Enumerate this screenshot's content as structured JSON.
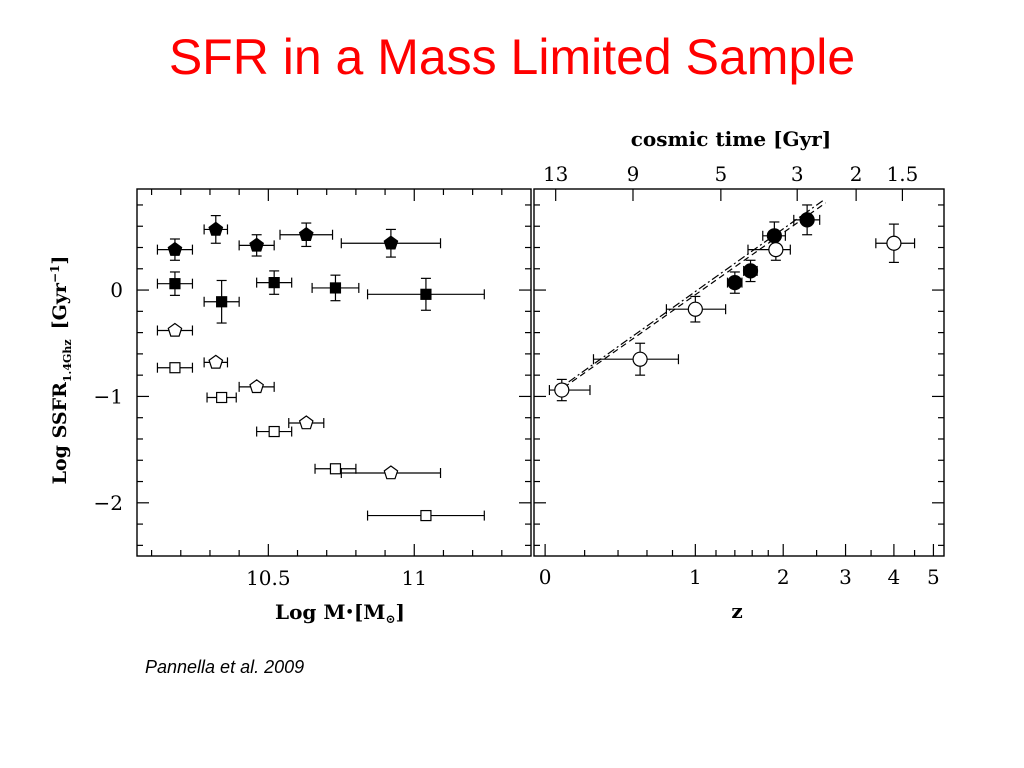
{
  "slide": {
    "title": "SFR in a Mass Limited Sample",
    "citation": "Pannella et al. 2009"
  },
  "chart_data": [
    {
      "type": "scatter",
      "panel": "left",
      "xlabel": "Log M*[M☉]",
      "ylabel": "Log SSFR1.4Ghz [Gyr−1]",
      "xlim": [
        10.05,
        11.4
      ],
      "ylim": [
        -2.5,
        0.95
      ],
      "xticks": [
        10.5,
        11
      ],
      "xtick_labels": [
        "10.5",
        "11"
      ],
      "yticks": [
        0,
        -1,
        -2
      ],
      "ytick_labels": [
        "0",
        "−1",
        "−2"
      ],
      "series": [
        {
          "marker": "filled-pentagon",
          "points": [
            {
              "x": 10.18,
              "y": 0.38,
              "xerr": 0.06,
              "yerr": 0.1
            },
            {
              "x": 10.32,
              "y": 0.57,
              "xerr": 0.04,
              "yerr": 0.13
            },
            {
              "x": 10.46,
              "y": 0.42,
              "xerr": 0.06,
              "yerr": 0.1
            },
            {
              "x": 10.63,
              "y": 0.52,
              "xerr": 0.09,
              "yerr": 0.11
            },
            {
              "x": 10.92,
              "y": 0.44,
              "xerr": 0.17,
              "yerr": 0.13
            }
          ]
        },
        {
          "marker": "filled-square",
          "points": [
            {
              "x": 10.18,
              "y": 0.06,
              "xerr": 0.06,
              "yerr": 0.11
            },
            {
              "x": 10.34,
              "y": -0.11,
              "xerr": 0.06,
              "yerr": 0.2
            },
            {
              "x": 10.52,
              "y": 0.07,
              "xerr": 0.06,
              "yerr": 0.11
            },
            {
              "x": 10.73,
              "y": 0.02,
              "xerr": 0.08,
              "yerr": 0.12
            },
            {
              "x": 11.04,
              "y": -0.04,
              "xerr": 0.2,
              "yerr": 0.15
            }
          ]
        },
        {
          "marker": "open-pentagon",
          "points": [
            {
              "x": 10.18,
              "y": -0.38,
              "xerr": 0.06,
              "yerr": 0.0
            },
            {
              "x": 10.32,
              "y": -0.68,
              "xerr": 0.04,
              "yerr": 0.0
            },
            {
              "x": 10.46,
              "y": -0.91,
              "xerr": 0.06,
              "yerr": 0.0
            },
            {
              "x": 10.63,
              "y": -1.25,
              "xerr": 0.06,
              "yerr": 0.0
            },
            {
              "x": 10.92,
              "y": -1.72,
              "xerr": 0.17,
              "yerr": 0.0
            }
          ]
        },
        {
          "marker": "open-square",
          "points": [
            {
              "x": 10.18,
              "y": -0.73,
              "xerr": 0.06,
              "yerr": 0.0
            },
            {
              "x": 10.34,
              "y": -1.01,
              "xerr": 0.05,
              "yerr": 0.0
            },
            {
              "x": 10.52,
              "y": -1.33,
              "xerr": 0.06,
              "yerr": 0.0
            },
            {
              "x": 10.73,
              "y": -1.68,
              "xerr": 0.07,
              "yerr": 0.0
            },
            {
              "x": 11.04,
              "y": -2.12,
              "xerr": 0.2,
              "yerr": 0.0
            }
          ]
        }
      ]
    },
    {
      "type": "scatter",
      "panel": "right",
      "xlabel": "z",
      "xscale": "log(1+z)",
      "xlim": [
        -0.05,
        5.3
      ],
      "ylim": [
        -2.5,
        0.95
      ],
      "xticks": [
        0,
        1,
        2,
        3,
        4,
        5
      ],
      "xtick_labels": [
        "0",
        "1",
        "2",
        "3",
        "4",
        "5"
      ],
      "top_axis": {
        "label": "cosmic time [Gyr]",
        "tick_labels": [
          "13",
          "9",
          "5",
          "3",
          "2",
          "1.5"
        ],
        "tick_z": [
          0.05,
          0.5,
          1.25,
          2.2,
          3.2,
          4.2
        ]
      },
      "series": [
        {
          "marker": "filled-circle",
          "points": [
            {
              "z": 1.4,
              "y": 0.07,
              "zerr": [
                0.08,
                0.08
              ],
              "yerr": 0.1
            },
            {
              "z": 1.58,
              "y": 0.18,
              "zerr": [
                0.08,
                0.08
              ],
              "yerr": 0.1
            },
            {
              "z": 1.88,
              "y": 0.51,
              "zerr": [
                0.15,
                0.15
              ],
              "yerr": 0.13
            },
            {
              "z": 2.35,
              "y": 0.66,
              "zerr": [
                0.2,
                0.2
              ],
              "yerr": 0.14
            }
          ]
        },
        {
          "marker": "open-circle",
          "points": [
            {
              "z": 0.08,
              "y": -0.94,
              "zerr": [
                0.06,
                0.15
              ],
              "yerr": 0.1
            },
            {
              "z": 0.55,
              "y": -0.65,
              "zerr": [
                0.3,
                0.3
              ],
              "yerr": 0.15
            },
            {
              "z": 1.0,
              "y": -0.18,
              "zerr": [
                0.25,
                0.3
              ],
              "yerr": 0.12
            },
            {
              "z": 1.9,
              "y": 0.38,
              "zerr": [
                0.35,
                0.2
              ],
              "yerr": 0.1
            },
            {
              "z": 4.0,
              "y": 0.44,
              "zerr": [
                0.4,
                0.5
              ],
              "yerr": 0.18
            }
          ]
        }
      ],
      "fit_lines": [
        {
          "style": "dashed",
          "from": {
            "z": 0.05,
            "y": -0.97
          },
          "to": {
            "z": 2.65,
            "y": 0.82
          }
        },
        {
          "style": "dotdash",
          "from": {
            "z": 0.05,
            "y": -0.95
          },
          "to": {
            "z": 2.6,
            "y": 0.84
          }
        }
      ]
    }
  ]
}
